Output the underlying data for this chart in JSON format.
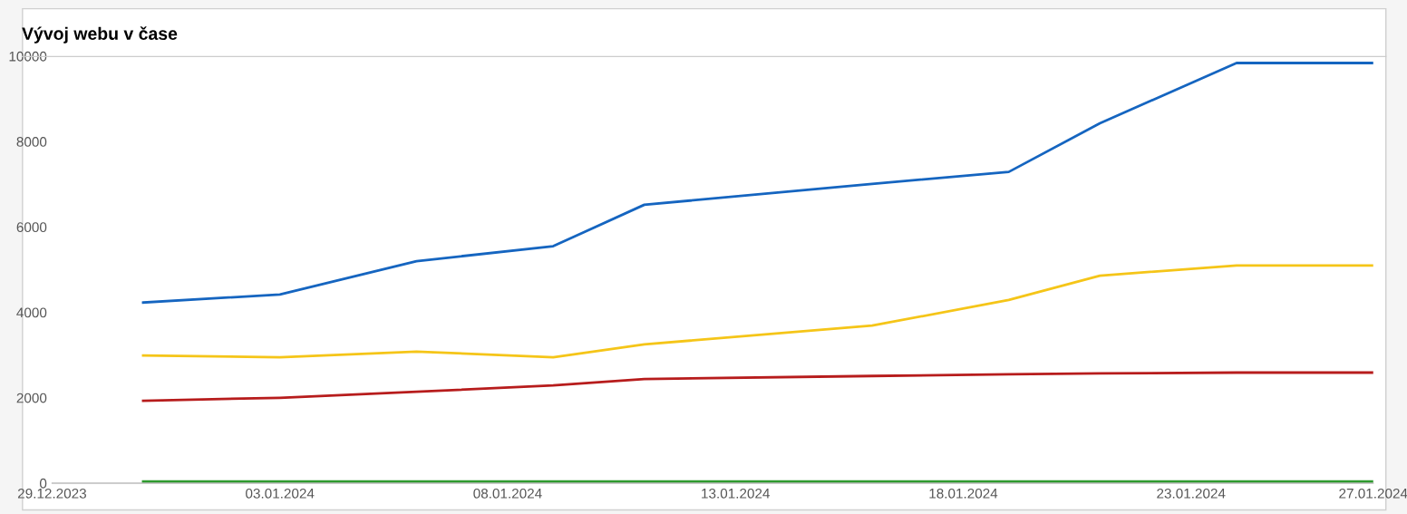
{
  "chart_data": {
    "type": "line",
    "title": "Vývoj webu v čase",
    "x": [
      "2023-12-31",
      "2024-01-03",
      "2024-01-06",
      "2024-01-09",
      "2024-01-11",
      "2024-01-16",
      "2024-01-19",
      "2024-01-21",
      "2024-01-24",
      "2024-01-27"
    ],
    "series": [
      {
        "color": "#1565c0",
        "values": [
          4230,
          4420,
          5200,
          5550,
          6520,
          7010,
          7290,
          8430,
          9840,
          9840
        ]
      },
      {
        "color": "#f5c518",
        "values": [
          2990,
          2950,
          3080,
          2950,
          3250,
          3690,
          4290,
          4860,
          5100,
          5100
        ]
      },
      {
        "color": "#b71c1c",
        "values": [
          1930,
          2000,
          2140,
          2290,
          2440,
          2510,
          2550,
          2570,
          2590,
          2590
        ]
      },
      {
        "color": "#2e9a2e",
        "values": [
          40,
          40,
          40,
          40,
          40,
          40,
          40,
          40,
          40,
          40
        ]
      }
    ],
    "xlim": [
      "2023-12-29",
      "2024-01-27"
    ],
    "xticks": [
      {
        "value": "2023-12-29",
        "label": "29.12.2023"
      },
      {
        "value": "2024-01-03",
        "label": "03.01.2024"
      },
      {
        "value": "2024-01-08",
        "label": "08.01.2024"
      },
      {
        "value": "2024-01-13",
        "label": "13.01.2024"
      },
      {
        "value": "2024-01-18",
        "label": "18.01.2024"
      },
      {
        "value": "2024-01-23",
        "label": "23.01.2024"
      },
      {
        "value": "2024-01-27",
        "label": "27.01.2024"
      }
    ],
    "ylim": [
      0,
      10000
    ],
    "yticks": [
      0,
      2000,
      4000,
      6000,
      8000,
      10000
    ],
    "grid": false,
    "legend": false,
    "marker": "none",
    "line_style": "solid"
  }
}
